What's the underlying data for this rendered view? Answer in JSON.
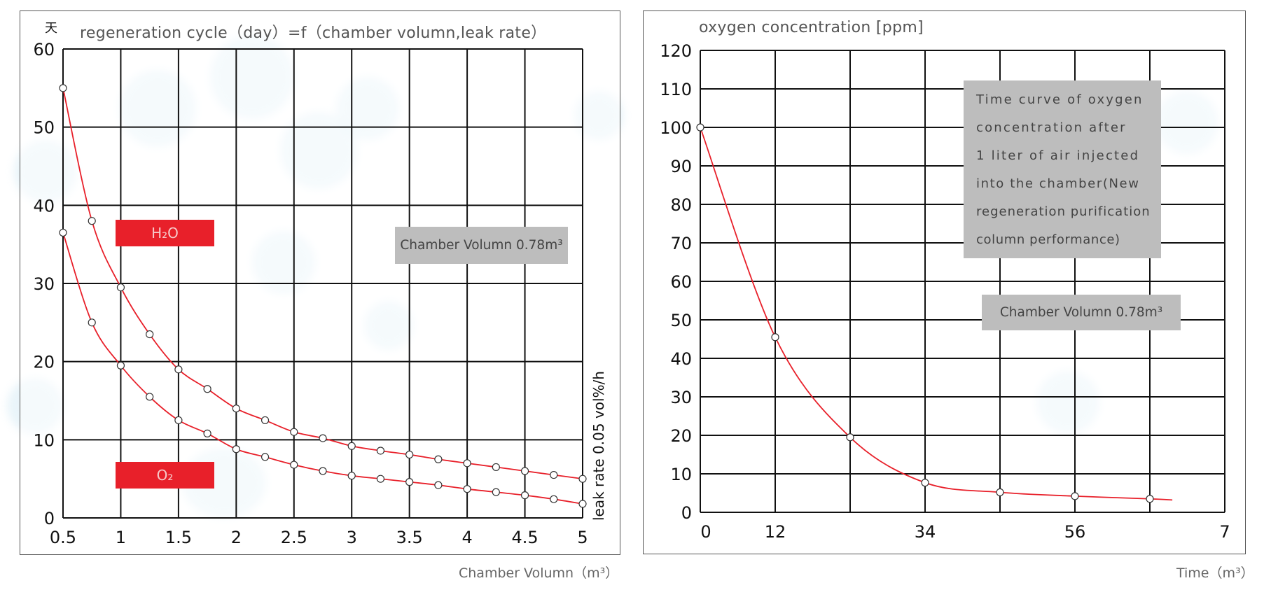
{
  "chart_data": [
    {
      "type": "line",
      "title": "regeneration cycle（day）=f（chamber volumn,leak rate）",
      "ylabel": "天",
      "xlabel": "Chamber Volumn（m³）",
      "side_label": "leak rate 0.05 vol%/h",
      "x_ticks": [
        "0.5",
        "1",
        "1.5",
        "2",
        "2.5",
        "3",
        "3.5",
        "4",
        "4.5",
        "5"
      ],
      "y_ticks": [
        "0",
        "10",
        "20",
        "30",
        "40",
        "50",
        "60"
      ],
      "xlim": [
        0.5,
        5
      ],
      "ylim": [
        0,
        60
      ],
      "grid": true,
      "annotation": "Chamber Volumn 0.78m³",
      "series": [
        {
          "name": "H₂O",
          "x": [
            0.5,
            0.75,
            1.0,
            1.25,
            1.5,
            1.75,
            2.0,
            2.25,
            2.5,
            2.75,
            3.0,
            3.25,
            3.5,
            3.75,
            4.0,
            4.25,
            4.5,
            4.75,
            5.0
          ],
          "y": [
            55,
            38,
            29.5,
            23.5,
            19,
            16.5,
            14,
            12.5,
            11,
            10.2,
            9.2,
            8.6,
            8.1,
            7.5,
            7,
            6.5,
            6,
            5.5,
            5
          ]
        },
        {
          "name": "O₂",
          "x": [
            0.5,
            0.75,
            1.0,
            1.25,
            1.5,
            1.75,
            2.0,
            2.25,
            2.5,
            2.75,
            3.0,
            3.25,
            3.5,
            3.75,
            4.0,
            4.25,
            4.5,
            4.75,
            5.0
          ],
          "y": [
            36.5,
            25,
            19.5,
            15.5,
            12.5,
            10.8,
            8.8,
            7.8,
            6.8,
            6,
            5.4,
            5,
            4.6,
            4.2,
            3.7,
            3.3,
            2.9,
            2.4,
            1.8
          ]
        }
      ]
    },
    {
      "type": "line",
      "title": "oxygen concentration [ppm]",
      "xlabel": "Time（m³）",
      "x_ticks": [
        "0",
        "12",
        "34",
        "56",
        "7"
      ],
      "y_ticks": [
        "0",
        "10",
        "20",
        "30",
        "40",
        "50",
        "60",
        "70",
        "80",
        "90",
        "100",
        "110",
        "120"
      ],
      "ylim": [
        0,
        120
      ],
      "grid": true,
      "annotation_1": "Time curve of oxygen concentration after 1 liter of air injected into the chamber(New regeneration purification column performance)",
      "annotation_2": "Chamber Volumn 0.78m³",
      "series": [
        {
          "name": "",
          "x": [
            0,
            1,
            2,
            3,
            4,
            5,
            6,
            6.3
          ],
          "y": [
            100,
            45.5,
            19.5,
            7.7,
            5.2,
            4.2,
            3.5,
            3.2
          ]
        }
      ]
    }
  ],
  "legend_colors": {
    "curve": "#e8202a",
    "label_bg": "#e8202a",
    "box_bg": "#bdbdbd"
  },
  "left": {
    "unit_char": "天",
    "title": "regeneration cycle（day）=f（chamber volumn,leak rate）",
    "h2o_label": "H₂O",
    "o2_label": "O₂",
    "box": "Chamber Volumn 0.78m³",
    "side": "leak rate 0.05 vol%/h",
    "xtitle": "Chamber Volumn（m³）"
  },
  "right": {
    "title": "oxygen concentration [ppm]",
    "box_line1": "Time curve of oxygen",
    "box_line2": "concentration after",
    "box_line3": "1 liter of air injected",
    "box_line4": "into the chamber(New",
    "box_line5": "regeneration purification",
    "box_line6": "column performance)",
    "box2": "Chamber Volumn 0.78m³",
    "xtitle": "Time（m³）"
  }
}
